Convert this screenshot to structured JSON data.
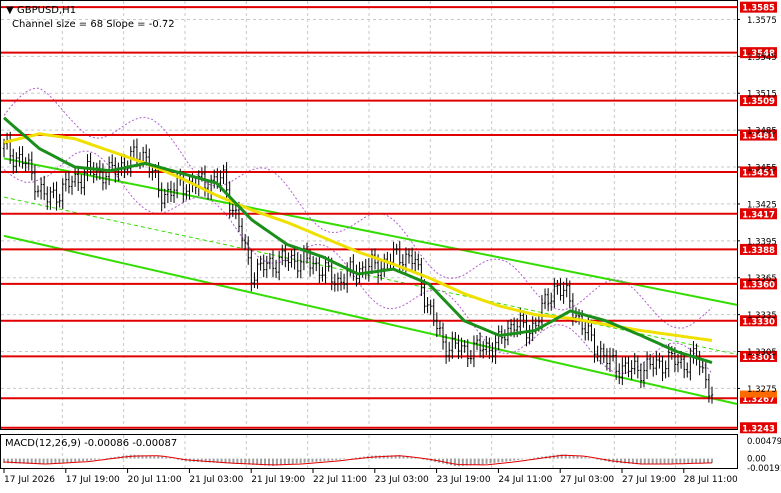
{
  "chart_data": [
    {
      "type": "candlestick",
      "title": "GBPUSD,H1",
      "subtitle": "Channel size = 68 Slope = -0.72",
      "yaxis_ticks": [
        "1.3575",
        "1.3545",
        "1.3515",
        "1.3485",
        "1.3455",
        "1.3425",
        "1.3395",
        "1.3365",
        "1.3335",
        "1.3305",
        "1.3275"
      ],
      "ylim": [
        1.3242,
        1.359
      ],
      "price_levels": [
        {
          "label": "1.3585",
          "value": 1.3585
        },
        {
          "label": "1.3548",
          "value": 1.3548
        },
        {
          "label": "1.3509",
          "value": 1.3509
        },
        {
          "label": "1.3481",
          "value": 1.3481
        },
        {
          "label": "1.3451",
          "value": 1.3451
        },
        {
          "label": "1.3417",
          "value": 1.3417
        },
        {
          "label": "1.3388",
          "value": 1.3388
        },
        {
          "label": "1.3360",
          "value": 1.336
        },
        {
          "label": "1.3330",
          "value": 1.333
        },
        {
          "label": "1.3301",
          "value": 1.3301
        },
        {
          "label": "1.3267",
          "value": 1.3267
        },
        {
          "label": "1.3243",
          "value": 1.3243
        }
      ],
      "current_price": 1.327,
      "x_labels": [
        "17 Jul 2026",
        "17 Jul 19:00",
        "20 Jul 11:00",
        "21 Jul 03:00",
        "21 Jul 19:00",
        "22 Jul 11:00",
        "23 Jul 03:00",
        "23 Jul 19:00",
        "24 Jul 11:00",
        "27 Jul 03:00",
        "27 Jul 19:00",
        "28 Jul 11:00"
      ],
      "close_path": [
        [
          0,
          1.347
        ],
        [
          0.03,
          1.3458
        ],
        [
          0.06,
          1.3428
        ],
        [
          0.09,
          1.344
        ],
        [
          0.12,
          1.3452
        ],
        [
          0.15,
          1.345
        ],
        [
          0.18,
          1.3462
        ],
        [
          0.2,
          1.3466
        ],
        [
          0.22,
          1.3432
        ],
        [
          0.25,
          1.344
        ],
        [
          0.28,
          1.3442
        ],
        [
          0.31,
          1.3445
        ],
        [
          0.33,
          1.341
        ],
        [
          0.35,
          1.3368
        ],
        [
          0.38,
          1.3378
        ],
        [
          0.41,
          1.338
        ],
        [
          0.44,
          1.3376
        ],
        [
          0.47,
          1.3362
        ],
        [
          0.5,
          1.3372
        ],
        [
          0.53,
          1.3375
        ],
        [
          0.56,
          1.3384
        ],
        [
          0.58,
          1.3378
        ],
        [
          0.6,
          1.334
        ],
        [
          0.62,
          1.3312
        ],
        [
          0.65,
          1.3306
        ],
        [
          0.68,
          1.3308
        ],
        [
          0.7,
          1.3312
        ],
        [
          0.72,
          1.333
        ],
        [
          0.74,
          1.332
        ],
        [
          0.76,
          1.3338
        ],
        [
          0.78,
          1.336
        ],
        [
          0.8,
          1.3345
        ],
        [
          0.82,
          1.3322
        ],
        [
          0.85,
          1.3298
        ],
        [
          0.88,
          1.329
        ],
        [
          0.91,
          1.3292
        ],
        [
          0.94,
          1.3298
        ],
        [
          0.96,
          1.3295
        ],
        [
          0.98,
          1.33
        ],
        [
          1.0,
          1.327
        ]
      ],
      "ma_fast_path": [
        [
          0,
          1.3495
        ],
        [
          0.05,
          1.347
        ],
        [
          0.1,
          1.3455
        ],
        [
          0.15,
          1.3452
        ],
        [
          0.2,
          1.3458
        ],
        [
          0.25,
          1.345
        ],
        [
          0.3,
          1.3442
        ],
        [
          0.35,
          1.3412
        ],
        [
          0.4,
          1.3392
        ],
        [
          0.45,
          1.3382
        ],
        [
          0.5,
          1.3368
        ],
        [
          0.55,
          1.3372
        ],
        [
          0.6,
          1.336
        ],
        [
          0.65,
          1.333
        ],
        [
          0.7,
          1.3318
        ],
        [
          0.75,
          1.3322
        ],
        [
          0.8,
          1.3338
        ],
        [
          0.85,
          1.333
        ],
        [
          0.9,
          1.3318
        ],
        [
          0.95,
          1.3305
        ],
        [
          1.0,
          1.3296
        ]
      ],
      "ma_slow_path": [
        [
          0,
          1.3475
        ],
        [
          0.05,
          1.3482
        ],
        [
          0.1,
          1.3478
        ],
        [
          0.15,
          1.3468
        ],
        [
          0.2,
          1.3458
        ],
        [
          0.25,
          1.3446
        ],
        [
          0.3,
          1.3432
        ],
        [
          0.35,
          1.342
        ],
        [
          0.4,
          1.341
        ],
        [
          0.45,
          1.3398
        ],
        [
          0.5,
          1.3386
        ],
        [
          0.55,
          1.3376
        ],
        [
          0.6,
          1.3365
        ],
        [
          0.65,
          1.3352
        ],
        [
          0.7,
          1.3342
        ],
        [
          0.75,
          1.3335
        ],
        [
          0.8,
          1.3332
        ],
        [
          0.85,
          1.3327
        ],
        [
          0.9,
          1.3322
        ],
        [
          0.95,
          1.3318
        ],
        [
          1.0,
          1.3314
        ]
      ],
      "channel_upper": [
        [
          0,
          1.3462
        ],
        [
          1.0,
          1.3347
        ]
      ],
      "channel_lower": [
        [
          0,
          1.3399
        ],
        [
          1.0,
          1.3267
        ]
      ],
      "colors": {
        "level_line": "#e00000",
        "level_label_bg": "#e00000",
        "channel": "#33dd00",
        "ma_fast": "#1a8f1a",
        "ma_slow": "#f0e000",
        "candles": "#000000",
        "envelope": "#b060d0",
        "grid": "#c8c8c8",
        "current_price_bg": "#ff6a00"
      }
    },
    {
      "type": "histogram",
      "title": "MACD(12,26,9) -0.00086 -0.00087",
      "yaxis_ticks": [
        "0.00479",
        "0.00",
        "-0.00191"
      ],
      "ylim": [
        -0.00191,
        0.00479
      ],
      "histogram_path": [
        [
          0,
          -0.0009
        ],
        [
          0.06,
          -0.0012
        ],
        [
          0.12,
          -0.0004
        ],
        [
          0.18,
          0.0008
        ],
        [
          0.22,
          0.0005
        ],
        [
          0.26,
          -0.0006
        ],
        [
          0.32,
          -0.001
        ],
        [
          0.38,
          -0.0015
        ],
        [
          0.42,
          -0.0009
        ],
        [
          0.47,
          -0.0003
        ],
        [
          0.52,
          0.0006
        ],
        [
          0.56,
          0.0007
        ],
        [
          0.6,
          -0.0004
        ],
        [
          0.64,
          -0.0016
        ],
        [
          0.68,
          -0.0011
        ],
        [
          0.72,
          -0.0004
        ],
        [
          0.76,
          0.0004
        ],
        [
          0.79,
          0.0009
        ],
        [
          0.82,
          0.0003
        ],
        [
          0.86,
          -0.0008
        ],
        [
          0.9,
          -0.0012
        ],
        [
          0.94,
          -0.001
        ],
        [
          1.0,
          -0.00086
        ]
      ],
      "signal_path": [
        [
          0,
          -0.0007
        ],
        [
          0.06,
          -0.0011
        ],
        [
          0.12,
          -0.0006
        ],
        [
          0.18,
          0.0005
        ],
        [
          0.22,
          0.0006
        ],
        [
          0.26,
          -0.0003
        ],
        [
          0.32,
          -0.0009
        ],
        [
          0.38,
          -0.0013
        ],
        [
          0.42,
          -0.0011
        ],
        [
          0.47,
          -0.0005
        ],
        [
          0.52,
          0.0003
        ],
        [
          0.56,
          0.0006
        ],
        [
          0.6,
          -0.0001
        ],
        [
          0.64,
          -0.0012
        ],
        [
          0.68,
          -0.0013
        ],
        [
          0.72,
          -0.0007
        ],
        [
          0.76,
          0.0001
        ],
        [
          0.79,
          0.0007
        ],
        [
          0.82,
          0.0005
        ],
        [
          0.86,
          -0.0005
        ],
        [
          0.9,
          -0.0011
        ],
        [
          0.94,
          -0.0011
        ],
        [
          1.0,
          -0.00087
        ]
      ],
      "colors": {
        "histogram": "#a0a0a0",
        "signal": "#e00000"
      }
    }
  ]
}
